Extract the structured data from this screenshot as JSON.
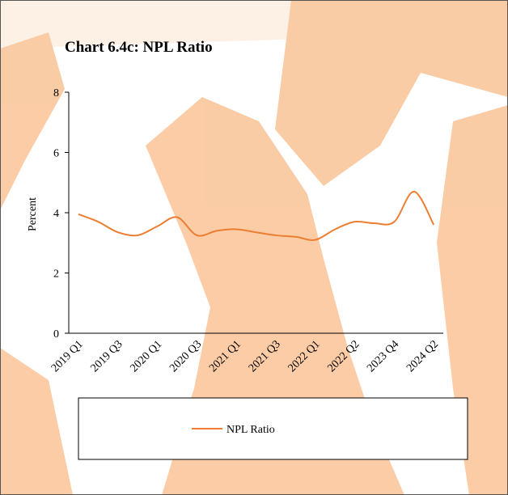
{
  "chart_data": {
    "type": "line",
    "title": "Chart 6.4c: NPL Ratio",
    "y_label": "Percent",
    "categories": [
      "2019 Q1",
      null,
      "2019 Q3",
      null,
      "2020 Q1",
      null,
      "2020 Q3",
      null,
      "2021 Q1",
      null,
      "2021 Q3",
      null,
      "2022 Q1",
      null,
      "2022 Q2",
      null,
      "2023 Q4",
      null,
      "2024 Q2"
    ],
    "series": [
      {
        "name": "NPL Ratio",
        "color": "#ed7d31",
        "values": [
          3.95,
          3.7,
          3.35,
          3.25,
          3.55,
          3.85,
          3.25,
          3.4,
          3.45,
          3.35,
          3.25,
          3.2,
          3.1,
          3.45,
          3.7,
          3.65,
          3.7,
          4.7,
          3.6
        ]
      }
    ],
    "ylim": [
      0,
      8
    ],
    "yticks": [
      0,
      2,
      4,
      6,
      8
    ],
    "legend": "bottom"
  }
}
